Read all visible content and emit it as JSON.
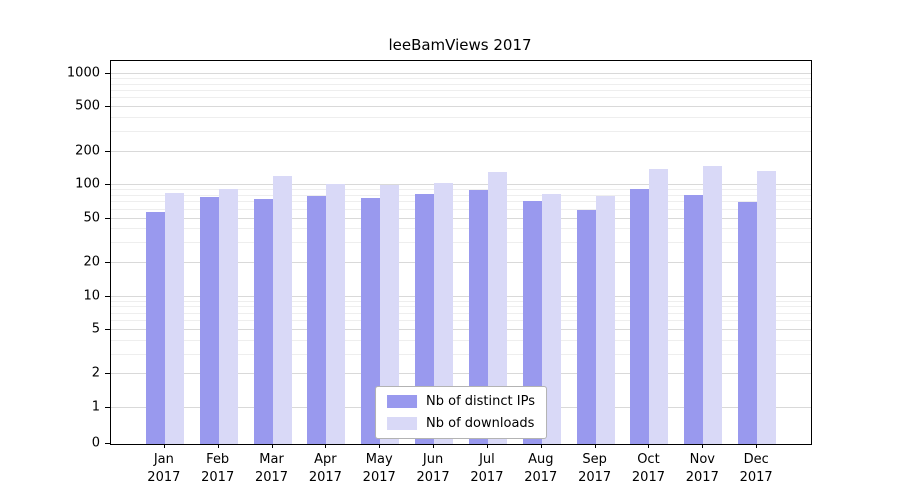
{
  "title": "leeBamViews 2017",
  "chart_data": {
    "type": "bar",
    "title": "leeBamViews 2017",
    "categories": [
      "Jan 2017",
      "Feb 2017",
      "Mar 2017",
      "Apr 2017",
      "May 2017",
      "Jun 2017",
      "Jul 2017",
      "Aug 2017",
      "Sep 2017",
      "Oct 2017",
      "Nov 2017",
      "Dec 2017"
    ],
    "series": [
      {
        "name": "Nb of distinct IPs",
        "color": "#9999ee",
        "values": [
          58,
          78,
          75,
          80,
          77,
          83,
          90,
          72,
          60,
          93,
          82,
          71
        ]
      },
      {
        "name": "Nb of downloads",
        "color": "#d9d9f7",
        "values": [
          85,
          93,
          120,
          103,
          101,
          104,
          130,
          84,
          80,
          140,
          148,
          135
        ]
      }
    ],
    "yscale": "symlog",
    "yticks": [
      0,
      1,
      2,
      5,
      10,
      20,
      50,
      100,
      200,
      500,
      1000
    ],
    "ylim": [
      0,
      1300
    ],
    "grid": true,
    "legend_position": "lower center"
  }
}
